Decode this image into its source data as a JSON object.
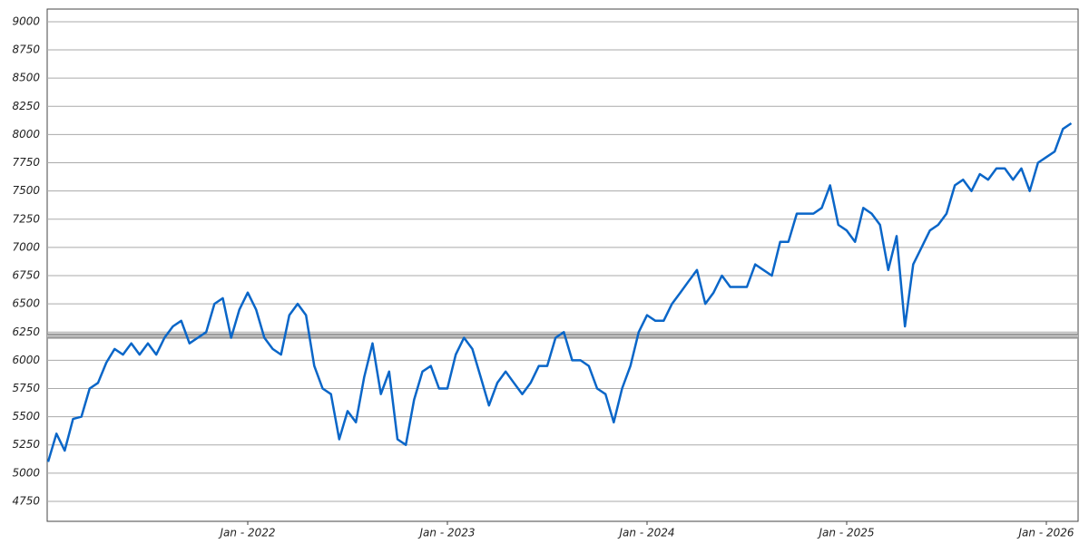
{
  "chart_data": {
    "type": "line",
    "categories": [
      null,
      null,
      null,
      null,
      null,
      null,
      null,
      null,
      null,
      null,
      null,
      null,
      null,
      null,
      null,
      null,
      null,
      null,
      null,
      null,
      null,
      null,
      null,
      null,
      "Jan - 2022",
      null,
      null,
      null,
      null,
      null,
      null,
      null,
      null,
      null,
      null,
      null,
      null,
      null,
      null,
      null,
      null,
      null,
      null,
      null,
      null,
      null,
      null,
      null,
      "Jan - 2023",
      null,
      null,
      null,
      null,
      null,
      null,
      null,
      null,
      null,
      null,
      null,
      null,
      null,
      null,
      null,
      null,
      null,
      null,
      null,
      null,
      null,
      null,
      null,
      "Jan - 2024",
      null,
      null,
      null,
      null,
      null,
      null,
      null,
      null,
      null,
      null,
      null,
      null,
      null,
      null,
      null,
      null,
      null,
      null,
      null,
      null,
      null,
      null,
      null,
      "Jan - 2025",
      null,
      null,
      null,
      null,
      null,
      null,
      null,
      null,
      null,
      null,
      null,
      null,
      null,
      null,
      null,
      null,
      null,
      null,
      null,
      null,
      null,
      null,
      null,
      "Jan - 2026",
      null,
      null,
      null
    ],
    "series": [
      {
        "color": "#0a66c8",
        "values": [
          5100,
          5350,
          5200,
          5480,
          5500,
          5750,
          5800,
          5980,
          6100,
          6050,
          6150,
          6050,
          6150,
          6050,
          6200,
          6300,
          6350,
          6150,
          6200,
          6250,
          6500,
          6550,
          6200,
          6450,
          6600,
          6450,
          6200,
          6100,
          6050,
          6400,
          6500,
          6400,
          5950,
          5750,
          5700,
          5300,
          5550,
          5450,
          5850,
          6150,
          5700,
          5900,
          5300,
          5250,
          5650,
          5900,
          5950,
          5750,
          5750,
          6050,
          6200,
          6100,
          5850,
          5600,
          5800,
          5900,
          5800,
          5700,
          5800,
          5950,
          5950,
          6200,
          6250,
          6000,
          6000,
          5950,
          5750,
          5700,
          5450,
          5750,
          5950,
          6250,
          6400,
          6350,
          6350,
          6500,
          6600,
          6700,
          6800,
          6500,
          6600,
          6750,
          6650,
          6650,
          6650,
          6850,
          6800,
          6750,
          7050,
          7050,
          7300,
          7300,
          7300,
          7350,
          7550,
          7200,
          7150,
          7050,
          7350,
          7300,
          7200,
          6800,
          7100,
          6300,
          6850,
          7000,
          7150,
          7200,
          7300,
          7550,
          7600,
          7500,
          7650,
          7600,
          7700,
          7700,
          7600,
          7700,
          7500,
          7750,
          7800,
          7850,
          8050,
          8100
        ]
      }
    ],
    "reference_line": 6215,
    "ylim": [
      4573,
      9112
    ],
    "yticks": [
      4750,
      5000,
      5250,
      5500,
      5750,
      6000,
      6250,
      6500,
      6750,
      7000,
      7250,
      7500,
      7750,
      8000,
      8250,
      8500,
      8750,
      9000
    ],
    "grid": true
  }
}
